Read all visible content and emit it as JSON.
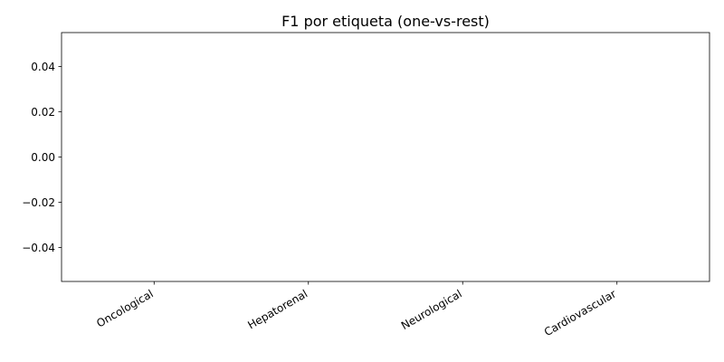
{
  "chart_data": {
    "type": "bar",
    "title": "F1 por etiqueta (one-vs-rest)",
    "xlabel": "",
    "ylabel": "",
    "categories": [
      "Oncological",
      "Hepatorenal",
      "Neurological",
      "Cardiovascular"
    ],
    "values": [
      0,
      0,
      0,
      0
    ],
    "ylim": [
      -0.055,
      0.055
    ],
    "yticks": [
      -0.04,
      -0.02,
      0.0,
      0.02,
      0.04
    ],
    "ytick_labels": [
      "−0.04",
      "−0.02",
      "0.00",
      "0.02",
      "0.04"
    ],
    "grid": false,
    "legend": "none",
    "bar_color": "#1f77b4"
  }
}
